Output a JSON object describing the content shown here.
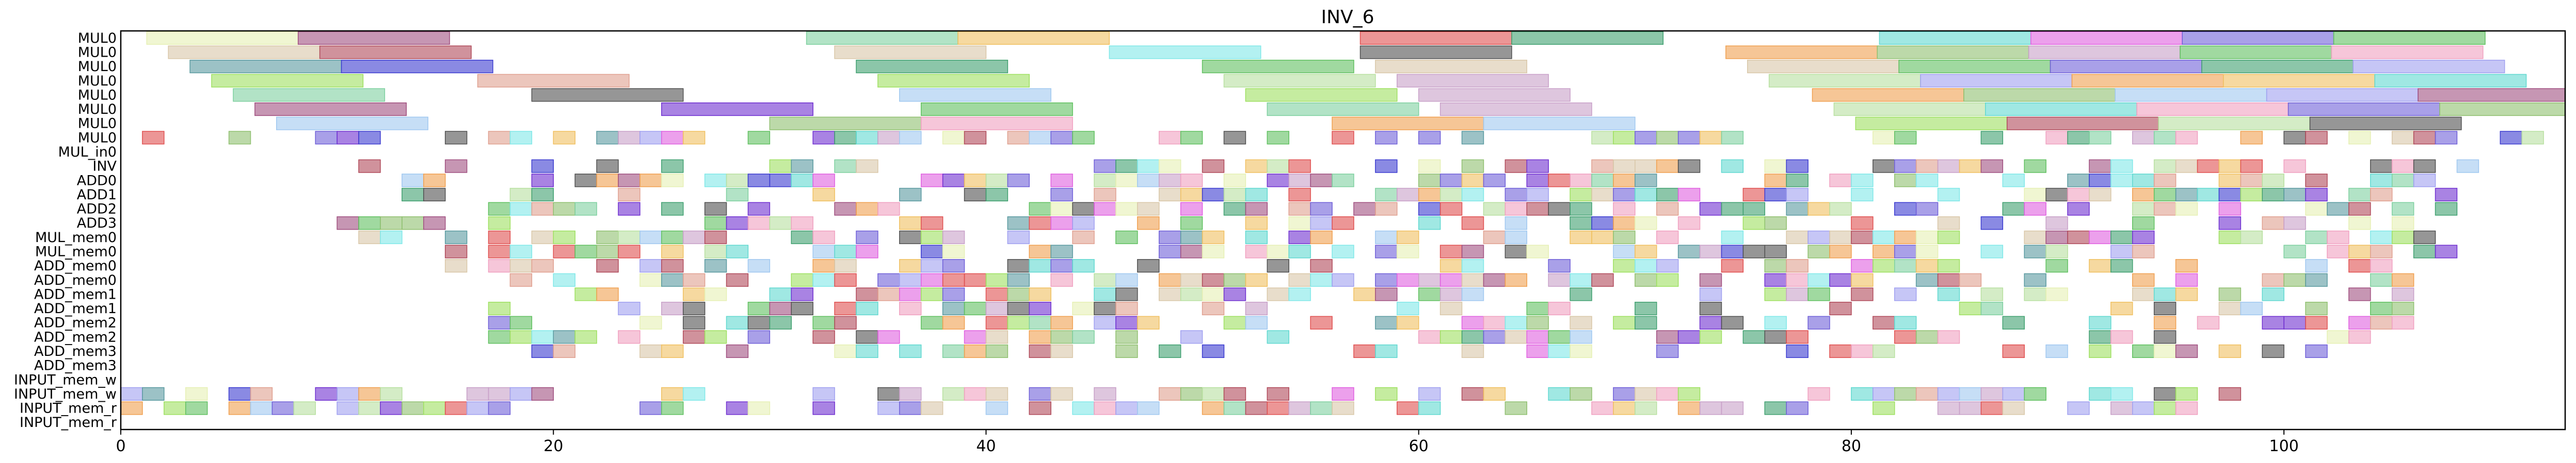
{
  "chart_data": {
    "type": "gantt",
    "title": "INV_6",
    "xlim": [
      0,
      113
    ],
    "xticks": [
      0,
      20,
      40,
      60,
      80,
      100
    ],
    "rows": [
      "MUL0",
      "MUL0",
      "MUL0",
      "MUL0",
      "MUL0",
      "MUL0",
      "MUL0",
      "MUL0",
      "MUL_in0",
      "INV",
      "ADD0",
      "ADD1",
      "ADD2",
      "ADD3",
      "MUL_mem0",
      "MUL_mem0",
      "ADD_mem0",
      "ADD_mem0",
      "ADD_mem1",
      "ADD_mem1",
      "ADD_mem2",
      "ADD_mem2",
      "ADD_mem3",
      "ADD_mem3",
      "INPUT_mem_w",
      "INPUT_mem_w",
      "INPUT_mem_r",
      "INPUT_mem_r"
    ],
    "palette": [
      "#e6f0b4",
      "#a05080",
      "#d9c7a8",
      "#b04a5a",
      "#5a9aa0",
      "#3c3cd0",
      "#9ee060",
      "#e0a090",
      "#7fd0a0",
      "#c8a0c8",
      "#a0c8f0",
      "#f0c060",
      "#505050",
      "#60c060",
      "#f0a0c0",
      "#7030d0",
      "#e05050",
      "#40a070",
      "#60d8d0",
      "#e060e0",
      "#7060d8",
      "#f0a050",
      "#90c070",
      "#80e8e8",
      "#b8e0a0",
      "#a0a0f0"
    ],
    "bars": [
      {
        "row": 0,
        "s": 1.2,
        "e": 8.2,
        "c": 0
      },
      {
        "row": 0,
        "s": 8.2,
        "e": 15.2,
        "c": 1
      },
      {
        "row": 0,
        "s": 31.7,
        "e": 38.7,
        "c": 8
      },
      {
        "row": 0,
        "s": 38.7,
        "e": 45.7,
        "c": 11
      },
      {
        "row": 0,
        "s": 57.3,
        "e": 64.3,
        "c": 16
      },
      {
        "row": 0,
        "s": 64.3,
        "e": 71.3,
        "c": 17
      },
      {
        "row": 0,
        "s": 81.3,
        "e": 88.3,
        "c": 18
      },
      {
        "row": 0,
        "s": 88.3,
        "e": 95.3,
        "c": 19
      },
      {
        "row": 0,
        "s": 95.3,
        "e": 102.3,
        "c": 20
      },
      {
        "row": 0,
        "s": 102.3,
        "e": 109.3,
        "c": 13
      },
      {
        "row": 1,
        "s": 2.2,
        "e": 9.2,
        "c": 2
      },
      {
        "row": 1,
        "s": 9.2,
        "e": 16.2,
        "c": 3
      },
      {
        "row": 1,
        "s": 33,
        "e": 40,
        "c": 2
      },
      {
        "row": 1,
        "s": 45.7,
        "e": 52.7,
        "c": 23
      },
      {
        "row": 1,
        "s": 57.3,
        "e": 64.3,
        "c": 12
      },
      {
        "row": 1,
        "s": 74.2,
        "e": 81.2,
        "c": 21
      },
      {
        "row": 1,
        "s": 81.2,
        "e": 88.2,
        "c": 22
      },
      {
        "row": 1,
        "s": 88.2,
        "e": 95.2,
        "c": 9
      },
      {
        "row": 1,
        "s": 95.2,
        "e": 102.2,
        "c": 13
      },
      {
        "row": 1,
        "s": 102.2,
        "e": 109.2,
        "c": 14
      },
      {
        "row": 2,
        "s": 3.2,
        "e": 10.2,
        "c": 4
      },
      {
        "row": 2,
        "s": 10.2,
        "e": 17.2,
        "c": 5
      },
      {
        "row": 2,
        "s": 34,
        "e": 41,
        "c": 17
      },
      {
        "row": 2,
        "s": 50,
        "e": 57,
        "c": 13
      },
      {
        "row": 2,
        "s": 58,
        "e": 65,
        "c": 2
      },
      {
        "row": 2,
        "s": 75.2,
        "e": 82.2,
        "c": 2
      },
      {
        "row": 2,
        "s": 82.2,
        "e": 89.2,
        "c": 13
      },
      {
        "row": 2,
        "s": 89.2,
        "e": 96.2,
        "c": 20
      },
      {
        "row": 2,
        "s": 96.2,
        "e": 103.2,
        "c": 17
      },
      {
        "row": 2,
        "s": 103.2,
        "e": 110.2,
        "c": 25
      },
      {
        "row": 3,
        "s": 4.2,
        "e": 11.2,
        "c": 6
      },
      {
        "row": 3,
        "s": 16.5,
        "e": 23.5,
        "c": 7
      },
      {
        "row": 3,
        "s": 35,
        "e": 42,
        "c": 6
      },
      {
        "row": 3,
        "s": 51,
        "e": 58,
        "c": 24
      },
      {
        "row": 3,
        "s": 59,
        "e": 66,
        "c": 9
      },
      {
        "row": 3,
        "s": 76.2,
        "e": 83.2,
        "c": 24
      },
      {
        "row": 3,
        "s": 83.2,
        "e": 90.2,
        "c": 25
      },
      {
        "row": 3,
        "s": 90.2,
        "e": 97.2,
        "c": 21
      },
      {
        "row": 3,
        "s": 97.2,
        "e": 104.2,
        "c": 11
      },
      {
        "row": 3,
        "s": 104.2,
        "e": 111.2,
        "c": 18
      },
      {
        "row": 4,
        "s": 5.2,
        "e": 12.2,
        "c": 8
      },
      {
        "row": 4,
        "s": 19,
        "e": 26,
        "c": 12
      },
      {
        "row": 4,
        "s": 36,
        "e": 43,
        "c": 10
      },
      {
        "row": 4,
        "s": 52,
        "e": 59,
        "c": 6
      },
      {
        "row": 4,
        "s": 60,
        "e": 67,
        "c": 9
      },
      {
        "row": 4,
        "s": 78.2,
        "e": 85.2,
        "c": 21
      },
      {
        "row": 4,
        "s": 85.2,
        "e": 92.2,
        "c": 22
      },
      {
        "row": 4,
        "s": 92.2,
        "e": 99.2,
        "c": 10
      },
      {
        "row": 4,
        "s": 99.2,
        "e": 106.2,
        "c": 25
      },
      {
        "row": 4,
        "s": 106.2,
        "e": 113,
        "c": 1
      },
      {
        "row": 5,
        "s": 6.2,
        "e": 13.2,
        "c": 1
      },
      {
        "row": 5,
        "s": 25,
        "e": 32,
        "c": 15
      },
      {
        "row": 5,
        "s": 37,
        "e": 44,
        "c": 13
      },
      {
        "row": 5,
        "s": 53,
        "e": 60,
        "c": 8
      },
      {
        "row": 5,
        "s": 61,
        "e": 68,
        "c": 9
      },
      {
        "row": 5,
        "s": 79.2,
        "e": 86.2,
        "c": 24
      },
      {
        "row": 5,
        "s": 86.2,
        "e": 93.2,
        "c": 18
      },
      {
        "row": 5,
        "s": 93.2,
        "e": 100.2,
        "c": 14
      },
      {
        "row": 5,
        "s": 100.2,
        "e": 107.2,
        "c": 20
      },
      {
        "row": 5,
        "s": 107.2,
        "e": 113,
        "c": 22
      },
      {
        "row": 6,
        "s": 7.2,
        "e": 14.2,
        "c": 10
      },
      {
        "row": 6,
        "s": 30,
        "e": 37,
        "c": 22
      },
      {
        "row": 6,
        "s": 37,
        "e": 44,
        "c": 14
      },
      {
        "row": 6,
        "s": 56,
        "e": 63,
        "c": 21
      },
      {
        "row": 6,
        "s": 63,
        "e": 70,
        "c": 10
      },
      {
        "row": 6,
        "s": 80.2,
        "e": 87.2,
        "c": 6
      },
      {
        "row": 6,
        "s": 87.2,
        "e": 94.2,
        "c": 3
      },
      {
        "row": 6,
        "s": 94.2,
        "e": 101.2,
        "c": 24
      },
      {
        "row": 6,
        "s": 101.2,
        "e": 108.2,
        "c": 12
      }
    ],
    "cell_rows": [
      {
        "row": 7,
        "min": 0,
        "max": 112,
        "density": 0.55
      },
      {
        "row": 8,
        "min": 0,
        "max": 112,
        "density": 0.0
      },
      {
        "row": 9,
        "min": 10,
        "max": 110,
        "density": 0.5
      },
      {
        "row": 10,
        "min": 12,
        "max": 108,
        "density": 0.55
      },
      {
        "row": 11,
        "min": 12,
        "max": 108,
        "density": 0.55
      },
      {
        "row": 12,
        "min": 14,
        "max": 108,
        "density": 0.5
      },
      {
        "row": 13,
        "min": 9,
        "max": 108,
        "density": 0.5
      },
      {
        "row": 14,
        "min": 9,
        "max": 108,
        "density": 0.55
      },
      {
        "row": 15,
        "min": 15,
        "max": 108,
        "density": 0.55
      },
      {
        "row": 16,
        "min": 15,
        "max": 106,
        "density": 0.55
      },
      {
        "row": 17,
        "min": 17,
        "max": 106,
        "density": 0.5
      },
      {
        "row": 18,
        "min": 17,
        "max": 106,
        "density": 0.5
      },
      {
        "row": 19,
        "min": 17,
        "max": 106,
        "density": 0.5
      },
      {
        "row": 20,
        "min": 17,
        "max": 106,
        "density": 0.45
      },
      {
        "row": 21,
        "min": 17,
        "max": 106,
        "density": 0.45
      },
      {
        "row": 22,
        "min": 17,
        "max": 106,
        "density": 0.4
      },
      {
        "row": 23,
        "min": 0,
        "max": 0,
        "density": 0.0
      },
      {
        "row": 24,
        "min": 0,
        "max": 0,
        "density": 0.0
      },
      {
        "row": 25,
        "min": 0,
        "max": 98,
        "density": 0.6
      },
      {
        "row": 26,
        "min": 0,
        "max": 98,
        "density": 0.6
      }
    ]
  }
}
